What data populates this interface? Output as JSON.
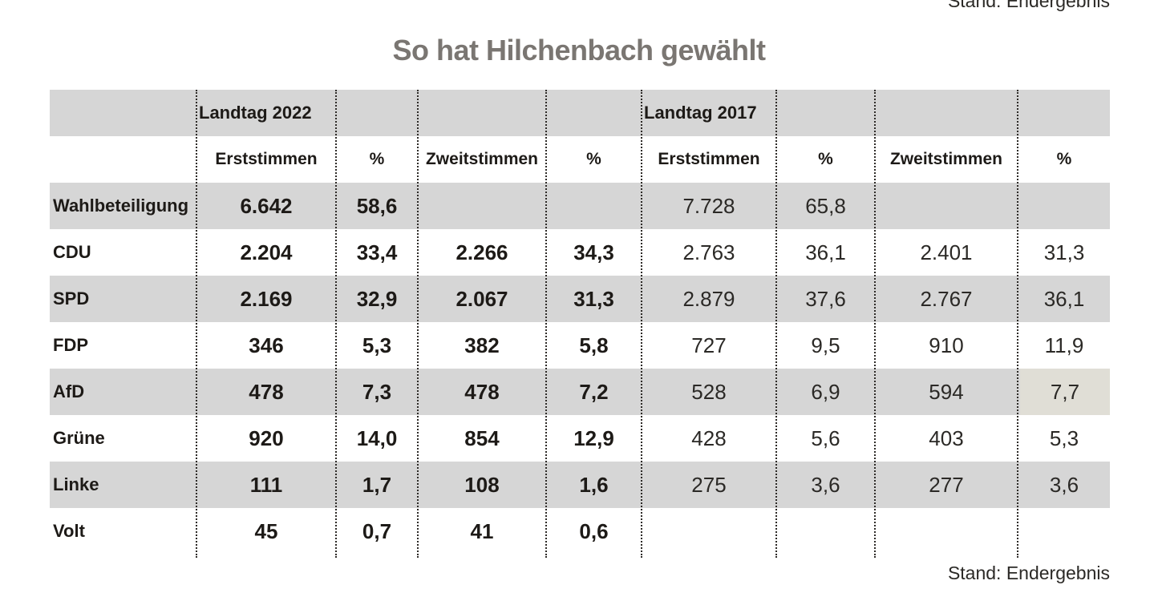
{
  "stand_top": "Stand: Endergebnis",
  "title": "So hat Hilchenbach gewählt",
  "years": {
    "y2022": "Landtag 2022",
    "y2017": "Landtag 2017"
  },
  "headers": [
    "Erststimmen",
    "%",
    "Zweitstimmen",
    "%",
    "Erststimmen",
    "%",
    "Zweitstimmen",
    "%"
  ],
  "rows": [
    {
      "label": "Wahlbeteiligung",
      "values": [
        "6.642",
        "58,6",
        "",
        "",
        "7.728",
        "65,8",
        "",
        ""
      ]
    },
    {
      "label": "CDU",
      "values": [
        "2.204",
        "33,4",
        "2.266",
        "34,3",
        "2.763",
        "36,1",
        "2.401",
        "31,3"
      ]
    },
    {
      "label": "SPD",
      "values": [
        "2.169",
        "32,9",
        "2.067",
        "31,3",
        "2.879",
        "37,6",
        "2.767",
        "36,1"
      ]
    },
    {
      "label": "FDP",
      "values": [
        "346",
        "5,3",
        "382",
        "5,8",
        "727",
        "9,5",
        "910",
        "11,9"
      ]
    },
    {
      "label": "AfD",
      "values": [
        "478",
        "7,3",
        "478",
        "7,2",
        "528",
        "6,9",
        "594",
        "7,7"
      ]
    },
    {
      "label": "Grüne",
      "values": [
        "920",
        "14,0",
        "854",
        "12,9",
        "428",
        "5,6",
        "403",
        "5,3"
      ]
    },
    {
      "label": "Linke",
      "values": [
        "111",
        "1,7",
        "108",
        "1,6",
        "275",
        "3,6",
        "277",
        "3,6"
      ]
    },
    {
      "label": "Volt",
      "values": [
        "45",
        "0,7",
        "41",
        "0,6",
        "",
        "",
        "",
        ""
      ]
    }
  ],
  "footer": "Stand: Endergebnis",
  "colors": {
    "title": "#7a7672",
    "shade": "#d6d6d6",
    "highlight": "#e0ded6",
    "text": "#1d1a17"
  }
}
